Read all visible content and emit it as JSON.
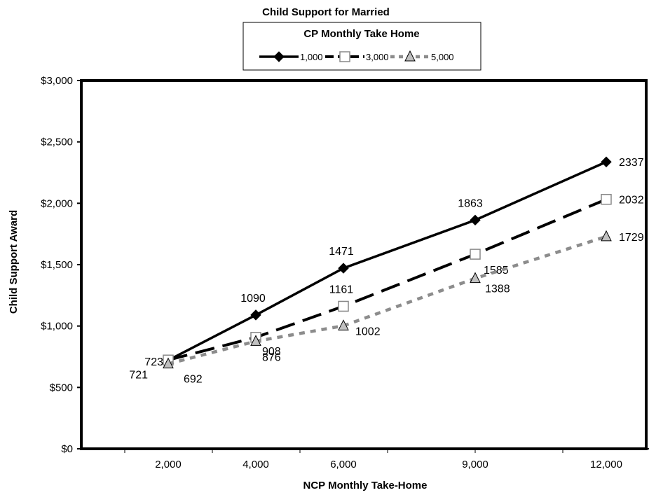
{
  "chart_data": {
    "type": "line",
    "title": "Child Support for Married",
    "xlabel": "NCP Monthly Take-Home",
    "ylabel": "Child Support Award",
    "categories": [
      "2,000",
      "4,000",
      "6,000",
      "9,000",
      "12,000"
    ],
    "yticks": [
      "$0",
      "$500",
      "$1,000",
      "$1,500",
      "$2,000",
      "$2,500",
      "$3,000"
    ],
    "ylim": [
      0,
      3000
    ],
    "grid": false,
    "legend": {
      "title": "CP Monthly Take Home",
      "placement": "top-center"
    },
    "series": [
      {
        "name": "1,000",
        "values": [
          721,
          1090,
          1471,
          1863,
          2337
        ],
        "color": "#000000",
        "style": "solid",
        "marker": "diamond"
      },
      {
        "name": "3,000",
        "values": [
          723,
          908,
          1161,
          1585,
          2032
        ],
        "color": "#000000",
        "style": "dashed",
        "marker": "square-open"
      },
      {
        "name": "5,000",
        "values": [
          692,
          876,
          1002,
          1388,
          1729
        ],
        "color": "#8c8c8c",
        "style": "dotted",
        "marker": "triangle"
      }
    ]
  }
}
